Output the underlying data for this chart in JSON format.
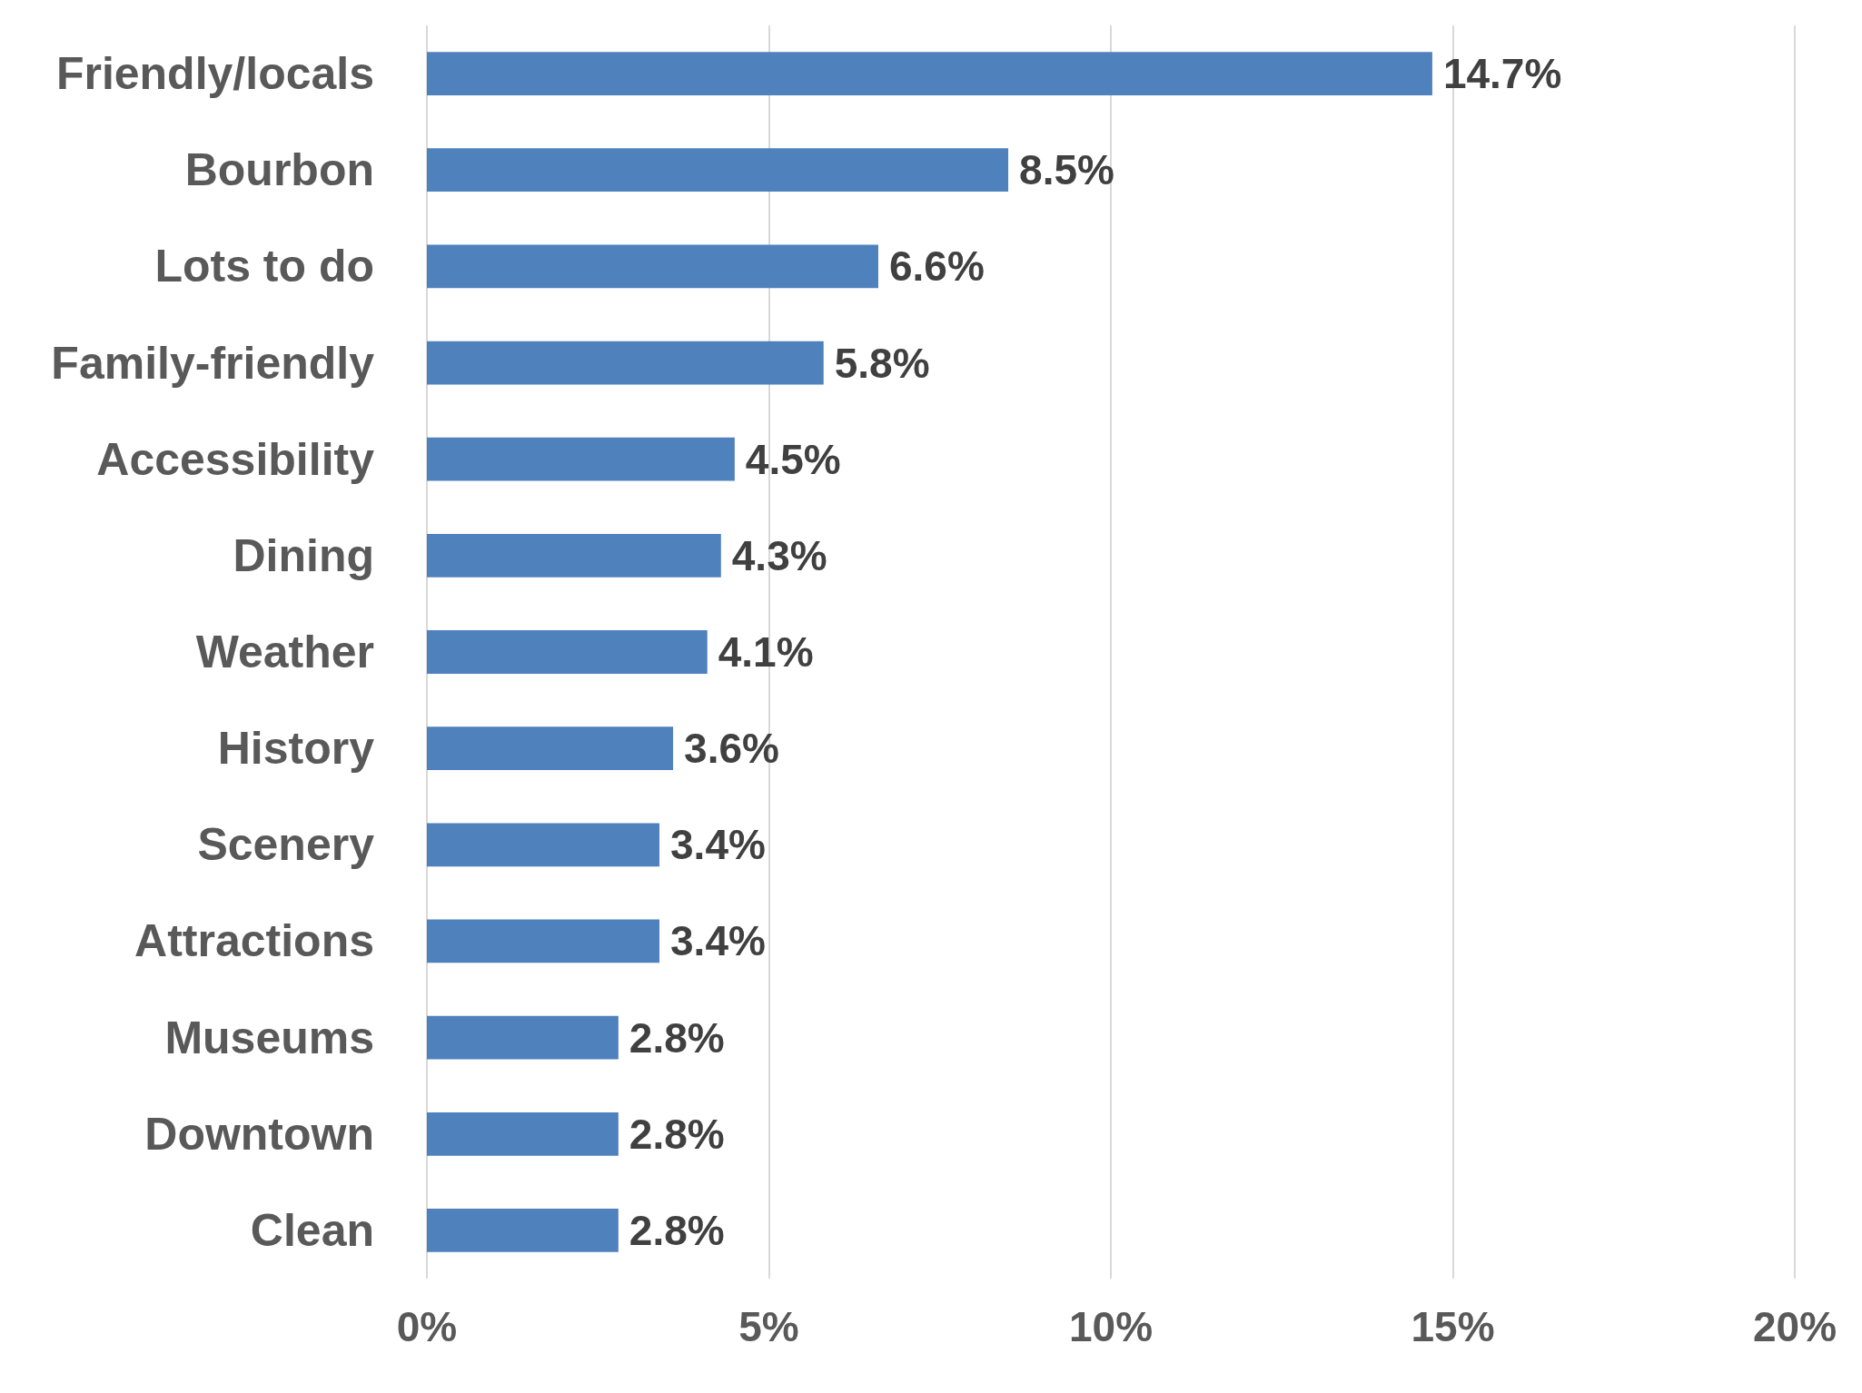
{
  "chart_data": {
    "type": "bar",
    "orientation": "horizontal",
    "categories": [
      "Friendly/locals",
      "Bourbon",
      "Lots to do",
      "Family-friendly",
      "Accessibility",
      "Dining",
      "Weather",
      "History",
      "Scenery",
      "Attractions",
      "Museums",
      "Downtown",
      "Clean"
    ],
    "values": [
      14.7,
      8.5,
      6.6,
      5.8,
      4.5,
      4.3,
      4.1,
      3.6,
      3.4,
      3.4,
      2.8,
      2.8,
      2.8
    ],
    "color": "#4f81bd",
    "data_labels": true,
    "value_labels": [
      "14.7%",
      "8.5%",
      "6.6%",
      "5.8%",
      "4.5%",
      "4.3%",
      "4.1%",
      "3.6%",
      "3.4%",
      "3.4%",
      "2.8%",
      "2.8%",
      "2.8%"
    ],
    "xlim": [
      0,
      20
    ],
    "xticks": [
      {
        "value": 0,
        "label": "0%"
      },
      {
        "value": 5,
        "label": "5%"
      },
      {
        "value": 10,
        "label": "10%"
      },
      {
        "value": 15,
        "label": "15%"
      },
      {
        "value": 20,
        "label": "20%"
      }
    ],
    "grid": "x"
  }
}
